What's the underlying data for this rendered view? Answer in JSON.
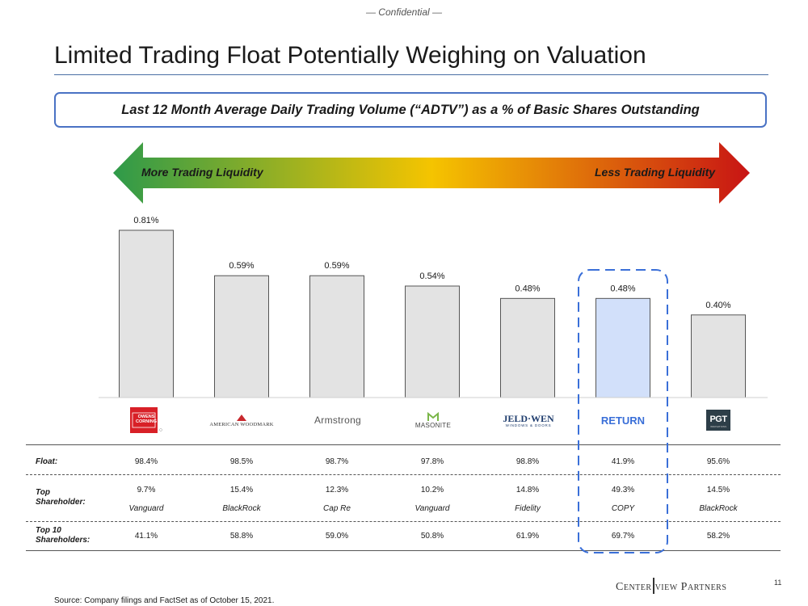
{
  "header": {
    "confidential": "— Confidential —",
    "title": "Limited Trading Float Potentially Weighing on Valuation",
    "subtitle": "Last 12 Month Average Daily Trading Volume (“ADTV”) as a % of Basic Shares Outstanding"
  },
  "arrow": {
    "left_label": "More Trading Liquidity",
    "right_label": "Less Trading Liquidity",
    "colors": [
      "#2e9a4a",
      "#f5c400",
      "#c81414"
    ]
  },
  "chart_data": {
    "type": "bar",
    "title": "Last 12 Month Average Daily Trading Volume (“ADTV”) as a % of Basic Shares Outstanding",
    "categories": [
      "Owens Corning",
      "American Woodmark",
      "Armstrong",
      "Masonite",
      "JELD-WEN",
      "RETURN",
      "PGT Innovations"
    ],
    "values": [
      0.81,
      0.59,
      0.59,
      0.54,
      0.48,
      0.48,
      0.4
    ],
    "labels": [
      "0.81%",
      "0.59%",
      "0.59%",
      "0.54%",
      "0.48%",
      "0.48%",
      "0.40%"
    ],
    "ylim": [
      0,
      0.81
    ],
    "unit": "%",
    "highlight_index": 5,
    "bar_color": "#e3e3e3",
    "highlight_color": "#d2e0fa",
    "xlabel": "",
    "ylabel": ""
  },
  "logos": {
    "owens_corning": "OWENS CORNING",
    "american_woodmark": "AMERICAN WOODMARK",
    "armstrong": "Armstrong",
    "masonite": "MASONITE",
    "jeldwen": "JELD·WEN",
    "jeldwen_sub": "WINDOWS & DOORS",
    "return": "RETURN",
    "pgt": "PGT",
    "pgt_sub": "INNOVATIONS"
  },
  "table": {
    "labels": {
      "float": "Float:",
      "top_shareholder": "Top Shareholder:",
      "top10": "Top 10 Shareholders:"
    },
    "float": [
      "98.4%",
      "98.5%",
      "98.7%",
      "97.8%",
      "98.8%",
      "41.9%",
      "95.6%"
    ],
    "top_pct": [
      "9.7%",
      "15.4%",
      "12.3%",
      "10.2%",
      "14.8%",
      "49.3%",
      "14.5%"
    ],
    "top_name": [
      "Vanguard",
      "BlackRock",
      "Cap Re",
      "Vanguard",
      "Fidelity",
      "COPY",
      "BlackRock"
    ],
    "top10": [
      "41.1%",
      "58.8%",
      "59.0%",
      "50.8%",
      "61.9%",
      "69.7%",
      "58.2%"
    ]
  },
  "footer": {
    "source": "Source: Company filings and FactSet as of October 15, 2021.",
    "brand_left": "Center",
    "brand_right": "view Partners",
    "page": "11"
  }
}
